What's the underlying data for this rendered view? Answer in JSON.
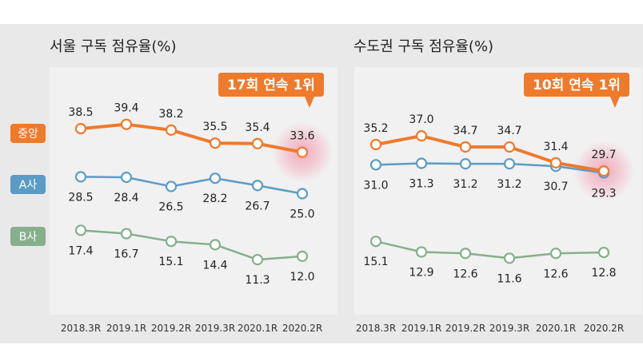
{
  "colors": {
    "orange": "#ee7a2c",
    "blue": "#5b9cc6",
    "green": "#86b08b",
    "panel_bg": "#f1f1f1",
    "outer_bg": "#e9e9e9",
    "highlight": "#f3a2b6",
    "text": "#222222",
    "axis_text": "#333333"
  },
  "legend": [
    {
      "label": "중앙",
      "color": "#ee7a2c"
    },
    {
      "label": "A사",
      "color": "#5b9cc6"
    },
    {
      "label": "B사",
      "color": "#86b08b"
    }
  ],
  "chart_data": [
    {
      "type": "line",
      "title": "서울 구독 점유율(%)",
      "badge": "17회 연속 1위",
      "categories": [
        "2018.3R",
        "2019.1R",
        "2019.2R",
        "2019.3R",
        "2020.1R",
        "2020.2R"
      ],
      "ylim": [
        8,
        42
      ],
      "grid": false,
      "series": [
        {
          "name": "중앙",
          "values": [
            38.5,
            39.4,
            38.2,
            35.5,
            35.4,
            33.6
          ],
          "labels": [
            "38.5",
            "39.4",
            "38.2",
            "35.5",
            "35.4",
            "33.6"
          ]
        },
        {
          "name": "A사",
          "values": [
            28.5,
            28.4,
            26.5,
            28.2,
            26.7,
            25.0
          ],
          "labels": [
            "28.5",
            "28.4",
            "26.5",
            "28.2",
            "26.7",
            "25.0"
          ]
        },
        {
          "name": "B사",
          "values": [
            17.4,
            16.7,
            15.1,
            14.4,
            11.3,
            12.0
          ],
          "labels": [
            "17.4",
            "16.7",
            "15.1",
            "14.4",
            "11.3",
            "12.0"
          ]
        }
      ]
    },
    {
      "type": "line",
      "title": "수도권 구독 점유율(%)",
      "badge": "10회 연속 1위",
      "categories": [
        "2018.3R",
        "2019.1R",
        "2019.2R",
        "2019.3R",
        "2020.1R",
        "2020.2R"
      ],
      "ylim": [
        8,
        42
      ],
      "grid": false,
      "series": [
        {
          "name": "중앙",
          "values": [
            35.2,
            37.0,
            34.7,
            34.7,
            31.4,
            29.7
          ],
          "labels": [
            "35.2",
            "37.0",
            "34.7",
            "34.7",
            "31.4",
            "29.7"
          ]
        },
        {
          "name": "A사",
          "values": [
            31.0,
            31.3,
            31.2,
            31.2,
            30.7,
            29.3
          ],
          "labels": [
            "31.0",
            "31.3",
            "31.2",
            "31.2",
            "30.7",
            "29.3"
          ]
        },
        {
          "name": "B사",
          "values": [
            15.1,
            12.9,
            12.6,
            11.6,
            12.6,
            12.8
          ],
          "labels": [
            "15.1",
            "12.9",
            "12.6",
            "11.6",
            "12.6",
            "12.8"
          ]
        }
      ]
    }
  ]
}
